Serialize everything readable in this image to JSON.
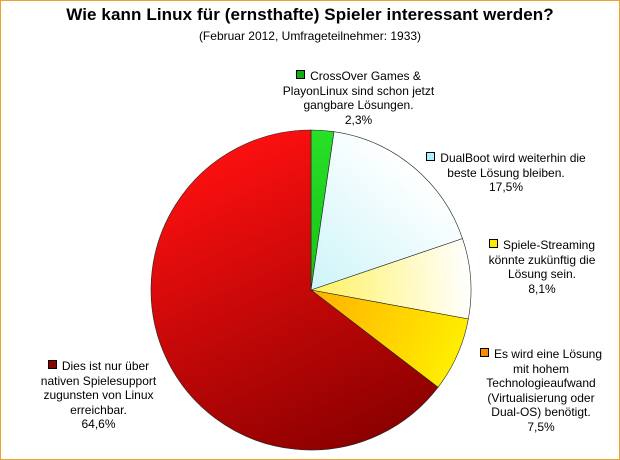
{
  "chart_data": {
    "type": "pie",
    "title": "Wie kann Linux für (ernsthafte) Spieler interessant werden?",
    "subtitle": "(Februar 2012, Umfrageteilnehmer: 1933)",
    "slices": [
      {
        "lines": [
          "CrossOver Games &",
          "PlayonLinux sind schon jetzt",
          "gangbare Lösungen."
        ],
        "percent_label": "2,3%",
        "value": 2.3,
        "color": "#0fae0f",
        "light": "#27e027"
      },
      {
        "lines": [
          "DualBoot wird weiterhin die",
          "beste Lösung bleiben."
        ],
        "percent_label": "17,5%",
        "value": 17.5,
        "color": "#aeeef5",
        "light": "#ffffff"
      },
      {
        "lines": [
          "Spiele-Streaming",
          "könnte zukünftig die",
          "Lösung sein."
        ],
        "percent_label": "8,1%",
        "value": 8.1,
        "color": "#ffe900",
        "light": "#ffffff"
      },
      {
        "lines": [
          "Es wird eine Lösung",
          "mit hohem",
          "Technologieaufwand",
          "(Virtualisierung oder",
          "Dual-OS) benötigt."
        ],
        "percent_label": "7,5%",
        "value": 7.5,
        "color": "#ff8a00",
        "light": "#ffee00"
      },
      {
        "lines": [
          "Dies ist nur über",
          "nativen Spielesupport",
          "zugunsten von Linux",
          "erreichbar."
        ],
        "percent_label": "64,6%",
        "value": 64.6,
        "color": "#8c0000",
        "light": "#ff1010"
      }
    ]
  }
}
